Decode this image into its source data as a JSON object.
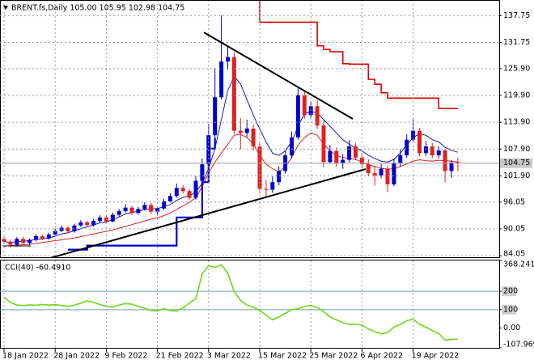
{
  "chart_data": [
    {
      "type": "candlestick",
      "title": "BRENT.fs,Daily  105.00 105.95 102.98 104.75",
      "categories": [
        "18 Jan 2022",
        null,
        null,
        null,
        null,
        null,
        null,
        null,
        "28 Jan 2022",
        null,
        null,
        null,
        null,
        null,
        null,
        null,
        "9 Feb 2022",
        null,
        null,
        null,
        null,
        null,
        null,
        null,
        "21 Feb 2022",
        null,
        null,
        null,
        null,
        null,
        null,
        null,
        "3 Mar 2022",
        null,
        null,
        null,
        null,
        null,
        null,
        null,
        "15 Mar 2022",
        null,
        null,
        null,
        null,
        null,
        null,
        null,
        "25 Mar 2022",
        null,
        null,
        null,
        null,
        null,
        null,
        null,
        "6 Apr 2022",
        null,
        null,
        null,
        null,
        null,
        null,
        null,
        "19 Apr 2022",
        null,
        null,
        null,
        null,
        null,
        null,
        null
      ],
      "open": [
        87.8,
        87.2,
        86.5,
        87.8,
        86.9,
        87.6,
        88.4,
        87.9,
        88.8,
        89.6,
        90.3,
        89.5,
        90.8,
        91.5,
        90.9,
        91.8,
        92.6,
        91.7,
        93.2,
        94.0,
        94.8,
        93.6,
        94.5,
        95.4,
        93.9,
        94.6,
        96.2,
        97.4,
        99.2,
        98.5,
        97.0,
        100.8,
        104.5,
        111.0,
        119.5,
        127.5,
        128.5,
        112.0,
        111.5,
        112.5,
        108.5,
        99.0,
        98.8,
        100.5,
        103.0,
        106.5,
        110.5,
        120.0,
        115.5,
        117.5,
        113.2,
        105.0,
        107.5,
        104.8,
        105.5,
        108.5,
        106.0,
        104.5,
        102.5,
        102.0,
        103.5,
        100.0,
        104.8,
        106.5,
        110.0,
        112.0,
        107.0,
        108.5,
        106.5,
        107.6,
        103.0,
        105.0
      ],
      "high": [
        88.3,
        87.7,
        88.2,
        88.3,
        87.9,
        88.9,
        88.7,
        89.2,
        90.1,
        90.8,
        90.6,
        91.2,
        92.0,
        91.9,
        92.3,
        93.1,
        93.0,
        93.7,
        94.5,
        95.6,
        95.2,
        95.0,
        96.0,
        95.8,
        95.1,
        96.8,
        98.0,
        100.2,
        99.8,
        98.9,
        101.9,
        105.8,
        113.5,
        126.0,
        137.8,
        131.0,
        129.6,
        114.8,
        114.5,
        113.4,
        109.6,
        101.0,
        101.9,
        104.0,
        107.5,
        111.8,
        121.5,
        120.9,
        118.6,
        118.8,
        114.6,
        108.8,
        108.3,
        106.8,
        109.9,
        109.2,
        107.0,
        105.6,
        104.2,
        104.6,
        104.2,
        105.8,
        107.9,
        111.2,
        114.6,
        112.6,
        109.7,
        109.3,
        108.5,
        107.9,
        105.5,
        105.95
      ],
      "low": [
        86.9,
        85.9,
        86.1,
        86.5,
        86.4,
        87.2,
        87.5,
        87.6,
        88.5,
        89.3,
        89.0,
        89.2,
        90.5,
        90.4,
        90.6,
        91.4,
        91.2,
        91.5,
        92.8,
        93.7,
        93.1,
        93.2,
        94.1,
        93.4,
        93.3,
        94.3,
        95.9,
        97.0,
        98.0,
        96.5,
        96.6,
        100.3,
        104.0,
        110.4,
        119.0,
        125.6,
        111.2,
        107.8,
        110.6,
        107.6,
        98.0,
        97.4,
        98.1,
        99.8,
        102.4,
        105.8,
        110.0,
        114.7,
        114.6,
        112.4,
        103.8,
        104.6,
        103.9,
        103.5,
        104.9,
        105.4,
        103.6,
        101.8,
        99.7,
        101.4,
        98.3,
        99.6,
        104.0,
        105.9,
        109.3,
        106.3,
        106.4,
        105.9,
        105.8,
        100.5,
        101.5,
        102.98
      ],
      "close": [
        87.2,
        86.5,
        87.8,
        86.9,
        87.6,
        88.4,
        87.9,
        88.8,
        89.6,
        90.3,
        89.5,
        90.8,
        91.5,
        90.9,
        91.8,
        92.6,
        91.7,
        93.2,
        94.0,
        94.8,
        93.6,
        94.5,
        95.4,
        93.9,
        94.6,
        96.2,
        97.4,
        99.2,
        98.5,
        97.0,
        100.8,
        104.5,
        111.0,
        119.5,
        127.5,
        128.5,
        112.0,
        111.5,
        112.5,
        108.5,
        99.0,
        98.8,
        100.5,
        103.0,
        106.5,
        110.5,
        120.0,
        115.5,
        117.5,
        113.2,
        105.0,
        107.5,
        104.8,
        105.5,
        108.5,
        106.0,
        104.5,
        102.5,
        102.0,
        103.5,
        100.0,
        104.8,
        106.5,
        110.0,
        112.0,
        107.0,
        108.5,
        106.5,
        107.6,
        103.0,
        104.9,
        104.75
      ],
      "up_color": "#0000cc",
      "down_color": "#e02020",
      "overlays": [
        {
          "color": "#1a1ab8",
          "width": 1,
          "step": false,
          "values": [
            87.2,
            87.0,
            87.2,
            87.3,
            87.4,
            87.7,
            87.8,
            88.0,
            88.4,
            88.9,
            89.2,
            89.6,
            90.1,
            90.5,
            90.9,
            91.4,
            91.6,
            92.1,
            92.7,
            93.4,
            93.7,
            94.0,
            94.4,
            94.5,
            94.6,
            95.0,
            95.5,
            96.4,
            97.1,
            97.4,
            98.3,
            100.2,
            103.5,
            108.0,
            114.5,
            121.0,
            124.2,
            122.5,
            119.0,
            115.5,
            112.4,
            109.5,
            107.0,
            106.5,
            107.5,
            109.5,
            113.0,
            115.8,
            116.3,
            116.0,
            114.5,
            113.0,
            111.5,
            110.0,
            109.0,
            108.2,
            107.5,
            106.5,
            105.8,
            105.2,
            105.0,
            105.6,
            107.0,
            108.8,
            110.5,
            111.3,
            111.0,
            110.0,
            109.5,
            108.3,
            107.6,
            107.2
          ]
        },
        {
          "color": "#e02020",
          "width": 1,
          "step": false,
          "values": [
            86.2,
            86.3,
            86.4,
            86.5,
            86.6,
            86.8,
            87.0,
            87.2,
            87.4,
            87.6,
            87.8,
            88.0,
            88.3,
            88.6,
            88.9,
            89.2,
            89.5,
            89.8,
            90.2,
            90.6,
            91.0,
            91.4,
            91.8,
            92.2,
            92.5,
            93.0,
            93.6,
            94.4,
            95.2,
            96.0,
            97.0,
            99.5,
            102.5,
            105.0,
            107.0,
            109.0,
            111.0,
            111.2,
            110.5,
            109.0,
            106.5,
            104.5,
            103.5,
            102.8,
            104.0,
            106.0,
            108.8,
            110.5,
            111.5,
            111.0,
            109.0,
            107.5,
            106.5,
            106.0,
            105.8,
            105.6,
            105.0,
            104.4,
            104.0,
            103.6,
            103.4,
            103.5,
            104.0,
            104.6,
            105.2,
            105.5,
            105.3,
            105.2,
            105.4,
            105.3,
            105.2,
            105.0
          ]
        },
        {
          "color": "#dd0000",
          "width": 1.6,
          "step": true,
          "values": [
            null,
            null,
            null,
            null,
            null,
            null,
            null,
            null,
            null,
            null,
            null,
            null,
            null,
            null,
            null,
            null,
            null,
            null,
            null,
            null,
            null,
            null,
            null,
            null,
            null,
            null,
            null,
            null,
            null,
            null,
            null,
            null,
            null,
            null,
            null,
            null,
            null,
            null,
            null,
            142,
            136.3,
            136.3,
            136.3,
            136.3,
            136.3,
            136.3,
            136.3,
            136.3,
            136.3,
            131.0,
            130.2,
            129.7,
            129.7,
            127.0,
            126.9,
            126.9,
            126.9,
            123.5,
            122.4,
            120.5,
            119.3,
            119.3,
            119.3,
            119.3,
            119.3,
            119.3,
            119.3,
            119.3,
            117.0,
            117.0,
            117.0,
            117.0
          ]
        },
        {
          "color": "#0000cc",
          "width": 2.2,
          "step": true,
          "values": [
            null,
            null,
            null,
            null,
            null,
            null,
            null,
            null,
            null,
            null,
            85.4,
            85.4,
            85.4,
            86.3,
            86.3,
            86.3,
            86.3,
            86.3,
            86.3,
            86.3,
            86.3,
            86.3,
            86.3,
            86.3,
            86.3,
            86.3,
            86.3,
            92.6,
            92.6,
            92.6,
            92.6,
            100.5,
            108.0,
            110.4,
            null,
            null,
            null,
            null,
            null,
            null,
            null,
            null,
            null,
            null,
            null,
            null,
            null,
            null,
            null,
            null,
            null,
            null,
            null,
            null,
            null,
            null,
            null,
            null,
            null,
            null,
            null,
            null,
            null,
            null,
            null,
            null,
            null,
            null,
            null,
            null,
            null,
            null
          ]
        }
      ],
      "last_price": {
        "value": 104.75,
        "label": "104.75"
      },
      "ylim": [
        83.7,
        140.9
      ],
      "yticks": [
        137.75,
        131.75,
        {
          "value": 125.9,
          "label": "125.90"
        },
        {
          "value": 119.9,
          "label": "119.90"
        },
        {
          "value": 113.9,
          "label": "113.90"
        },
        {
          "value": 107.9,
          "label": "107.90"
        },
        {
          "value": 101.9,
          "label": "101.90"
        },
        96.05,
        90.05,
        84.05
      ],
      "grid": true
    },
    {
      "type": "line",
      "title": "CCI(40) -60.4910",
      "color": "#6fd61c",
      "values": [
        168,
        140,
        125,
        122,
        126,
        124,
        128,
        125,
        127,
        122,
        118,
        124,
        135,
        148,
        140,
        128,
        118,
        114,
        125,
        133,
        130,
        118,
        108,
        95,
        93,
        105,
        95,
        92,
        110,
        135,
        160,
        295,
        340,
        330,
        345,
        300,
        200,
        150,
        125,
        114,
        95,
        70,
        45,
        60,
        80,
        100,
        105,
        118,
        123,
        112,
        90,
        60,
        45,
        30,
        20,
        22,
        15,
        -5,
        -20,
        -32,
        -25,
        5,
        20,
        40,
        48,
        20,
        5,
        -14,
        -30,
        -65,
        -62,
        -60.491
      ],
      "levels": [
        200,
        100
      ],
      "level_color": "#6c9fb0",
      "ylim": [
        -107.969,
        368.2416
      ],
      "yticks": [
        368.2416,
        200,
        100,
        {
          "value": 0,
          "label": "0.00"
        },
        -107.969
      ],
      "grid": false
    }
  ]
}
